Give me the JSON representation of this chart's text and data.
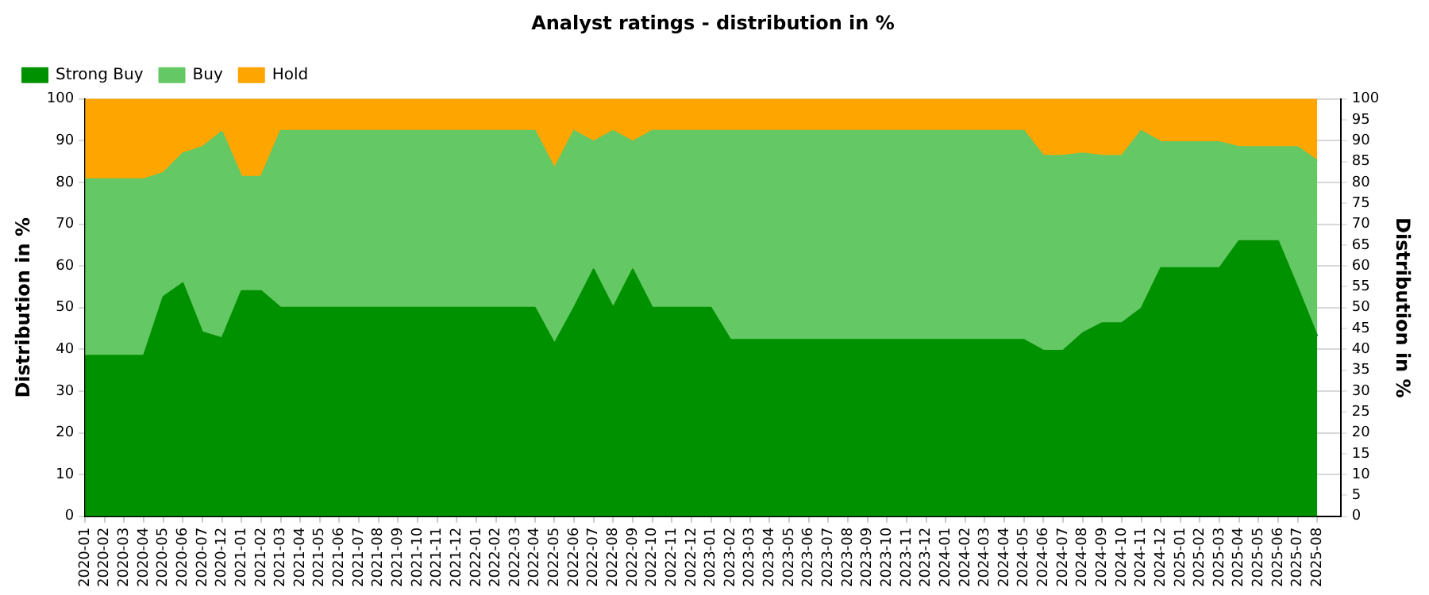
{
  "chart_data": {
    "type": "area",
    "title": "Analyst ratings - distribution in %",
    "ylabel": "Distribution in %",
    "y2label": "Distribution in %",
    "categories": [
      "2020-01",
      "2020-02",
      "2020-03",
      "2020-04",
      "2020-05",
      "2020-06",
      "2020-07",
      "2020-12",
      "2021-01",
      "2021-02",
      "2021-03",
      "2021-04",
      "2021-05",
      "2021-06",
      "2021-07",
      "2021-08",
      "2021-09",
      "2021-10",
      "2021-11",
      "2021-12",
      "2022-01",
      "2022-02",
      "2022-03",
      "2022-04",
      "2022-05",
      "2022-06",
      "2022-07",
      "2022-08",
      "2022-09",
      "2022-10",
      "2022-11",
      "2022-12",
      "2023-01",
      "2023-02",
      "2023-03",
      "2023-04",
      "2023-05",
      "2023-06",
      "2023-07",
      "2023-08",
      "2023-09",
      "2023-10",
      "2023-11",
      "2023-12",
      "2024-01",
      "2024-02",
      "2024-03",
      "2024-04",
      "2024-05",
      "2024-06",
      "2024-07",
      "2024-08",
      "2024-09",
      "2024-10",
      "2024-11",
      "2024-12",
      "2025-01",
      "2025-02",
      "2025-03",
      "2025-04",
      "2025-05",
      "2025-06",
      "2025-07",
      "2025-08"
    ],
    "stacked": true,
    "series": [
      {
        "name": "Strong Buy",
        "color": "#009100",
        "values": [
          38.5,
          38.5,
          38.5,
          38.5,
          52.6,
          55.9,
          44.1,
          42.7,
          54,
          54,
          50,
          50,
          50,
          50,
          50,
          50,
          50,
          50,
          50,
          50,
          50,
          50,
          50,
          50,
          41.4,
          50,
          59.2,
          50,
          59.2,
          50,
          50,
          50,
          50,
          42.3,
          42.3,
          42.3,
          42.3,
          42.3,
          42.3,
          42.3,
          42.3,
          42.3,
          42.3,
          42.3,
          42.3,
          42.3,
          42.3,
          42.3,
          42.3,
          39.7,
          39.7,
          43.9,
          46.3,
          46.3,
          49.8,
          59.5,
          59.5,
          59.5,
          59.5,
          66,
          66,
          66,
          54.8,
          43.2
        ]
      },
      {
        "name": "Buy",
        "color": "#64c864",
        "values": [
          42.3,
          42.3,
          42.3,
          42.3,
          29.7,
          31.1,
          44.4,
          49.5,
          27.4,
          27.4,
          42.4,
          42.4,
          42.4,
          42.4,
          42.4,
          42.4,
          42.4,
          42.4,
          42.4,
          42.4,
          42.4,
          42.4,
          42.4,
          42.4,
          42,
          42.4,
          30.6,
          42.4,
          30.6,
          42.4,
          42.4,
          42.4,
          42.4,
          50.1,
          50.1,
          50.1,
          50.1,
          50.1,
          50.1,
          50.1,
          50.1,
          50.1,
          50.1,
          50.1,
          50.1,
          50.1,
          50.1,
          50.1,
          50.1,
          46.7,
          46.7,
          43.1,
          40.1,
          40.1,
          42.6,
          30.2,
          30.2,
          30.2,
          30.2,
          22.5,
          22.5,
          22.5,
          33.7,
          42
        ]
      },
      {
        "name": "Hold",
        "color": "#ffa500",
        "values": [
          19.2,
          19.2,
          19.2,
          19.2,
          17.7,
          13,
          11.5,
          7.8,
          18.6,
          18.6,
          7.6,
          7.6,
          7.6,
          7.6,
          7.6,
          7.6,
          7.6,
          7.6,
          7.6,
          7.6,
          7.6,
          7.6,
          7.6,
          7.6,
          16.6,
          7.6,
          10.2,
          7.6,
          10.2,
          7.6,
          7.6,
          7.6,
          7.6,
          7.6,
          7.6,
          7.6,
          7.6,
          7.6,
          7.6,
          7.6,
          7.6,
          7.6,
          7.6,
          7.6,
          7.6,
          7.6,
          7.6,
          7.6,
          7.6,
          13.6,
          13.6,
          13,
          13.6,
          13.6,
          7.6,
          10.3,
          10.3,
          10.3,
          10.3,
          11.5,
          11.5,
          11.5,
          11.5,
          14.8
        ]
      }
    ],
    "ylim": [
      0,
      100
    ],
    "yticks": [
      0,
      10,
      20,
      30,
      40,
      50,
      60,
      70,
      80,
      90,
      100
    ],
    "y2lim": [
      0,
      100
    ],
    "y2ticks": [
      0,
      5,
      10,
      15,
      20,
      25,
      30,
      35,
      40,
      45,
      50,
      55,
      60,
      65,
      70,
      75,
      80,
      85,
      90,
      95,
      100
    ],
    "grid": "y",
    "legend": "top left"
  }
}
